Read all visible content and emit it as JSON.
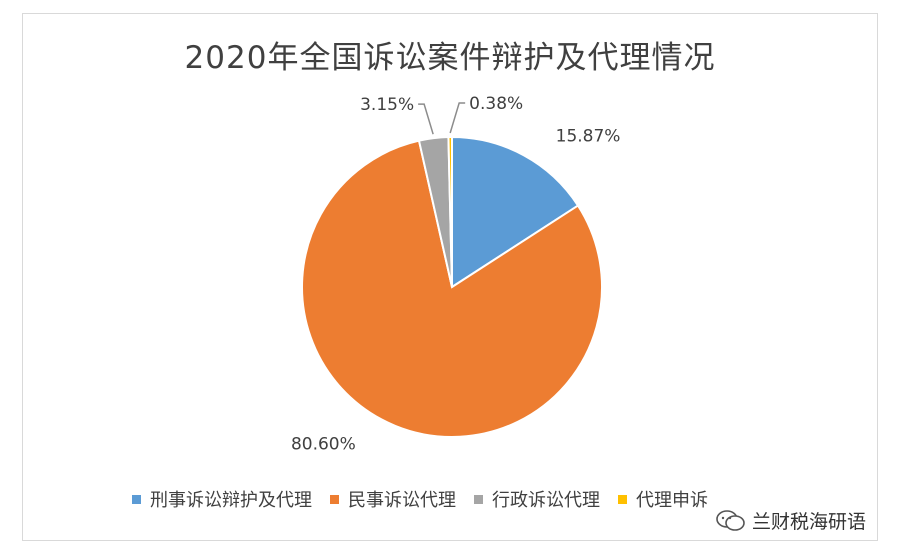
{
  "chart_data": {
    "type": "pie",
    "title": "2020年全国诉讼案件辩护及代理情况",
    "categories": [
      "刑事诉讼辩护及代理",
      "民事诉讼代理",
      "行政诉讼代理",
      "代理申诉"
    ],
    "values": [
      15.87,
      80.6,
      3.15,
      0.38
    ],
    "labels": [
      "15.87%",
      "80.60%",
      "3.15%",
      "0.38%"
    ],
    "colors": [
      "#5b9bd5",
      "#ed7d31",
      "#a5a5a5",
      "#ffc000"
    ],
    "legend_position": "bottom"
  },
  "watermark": {
    "text": "兰财税海研语",
    "icon": "wechat-icon"
  }
}
